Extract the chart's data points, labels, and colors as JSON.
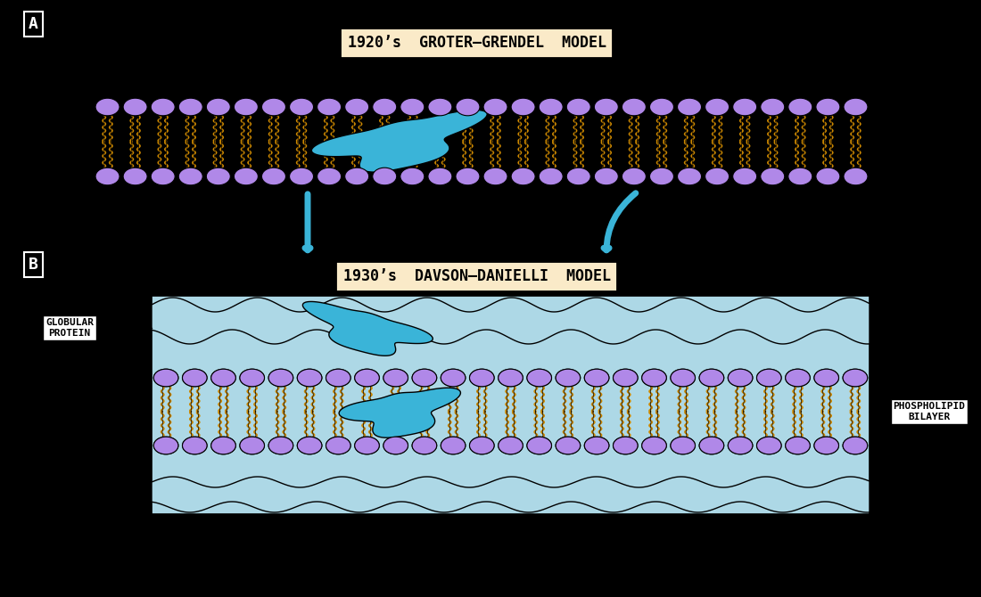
{
  "bg_color": "#000000",
  "title_a": "1920’s  GROTER–GRENDEL  MODEL",
  "title_b": "1930’s  DAVSON–DANIELLI  MODEL",
  "label_a": "A",
  "label_b": "B",
  "label_globular": "GLOBULAR\nPROTEIN",
  "label_phospholipid": "PHOSPHOLIPID\nBILAYER",
  "box_color": "#faeac8",
  "box_edge_color": "#000000",
  "head_color": "#b088e8",
  "head_edge": "#000000",
  "tail_orange": "#cc8800",
  "tail_black": "#000000",
  "light_blue": "#add8e6",
  "protein_blue": "#3ab4d8",
  "arrow_blue": "#3ab4d8",
  "white": "#ffffff"
}
